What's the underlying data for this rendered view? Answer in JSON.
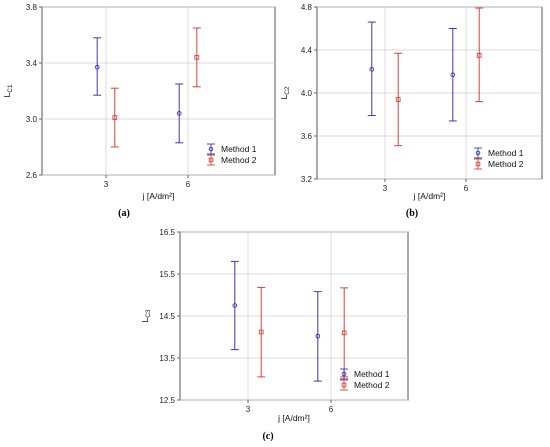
{
  "chart_data": [
    {
      "type": "scatter",
      "subtype": "error-bar",
      "panel_label": "(a)",
      "categories": [
        "3",
        "6"
      ],
      "xlabel": "j [A/dm²]",
      "ylabel": "L",
      "ylabel_sub": "C1",
      "ylim": [
        2.6,
        3.8
      ],
      "yticks": [
        "2.6",
        "3.0",
        "3.4",
        "3.8"
      ],
      "grid": true,
      "legend_position": "bottom-right",
      "series": [
        {
          "name": "Method 1",
          "color": "#3a3ab0",
          "marker": "circle",
          "mean": [
            3.37,
            3.04
          ],
          "lower": [
            3.17,
            2.83
          ],
          "upper": [
            3.58,
            3.25
          ]
        },
        {
          "name": "Method 2",
          "color": "#d9443a",
          "marker": "square",
          "mean": [
            3.01,
            3.44
          ],
          "lower": [
            2.8,
            3.23
          ],
          "upper": [
            3.22,
            3.65
          ]
        }
      ]
    },
    {
      "type": "scatter",
      "subtype": "error-bar",
      "panel_label": "(b)",
      "categories": [
        "3",
        "6"
      ],
      "xlabel": "j [A/dm²]",
      "ylabel": "L",
      "ylabel_sub": "C2",
      "ylim": [
        3.2,
        4.8
      ],
      "yticks": [
        "3.2",
        "3.6",
        "4.0",
        "4.4",
        "4.8"
      ],
      "grid": true,
      "legend_position": "bottom-right",
      "series": [
        {
          "name": "Method 1",
          "color": "#3a3ab0",
          "marker": "circle",
          "mean": [
            4.22,
            4.17
          ],
          "lower": [
            3.79,
            3.74
          ],
          "upper": [
            4.66,
            4.6
          ]
        },
        {
          "name": "Method 2",
          "color": "#d9443a",
          "marker": "square",
          "mean": [
            3.94,
            4.35
          ],
          "lower": [
            3.51,
            3.92
          ],
          "upper": [
            4.37,
            4.79
          ]
        }
      ]
    },
    {
      "type": "scatter",
      "subtype": "error-bar",
      "panel_label": "(c)",
      "categories": [
        "3",
        "6"
      ],
      "xlabel": "j [A/dm²]",
      "ylabel": "L",
      "ylabel_sub": "C3",
      "ylim": [
        12.5,
        16.5
      ],
      "yticks": [
        "12.5",
        "13.5",
        "14.5",
        "15.5",
        "16.5"
      ],
      "grid": true,
      "legend_position": "bottom-right",
      "series": [
        {
          "name": "Method 1",
          "color": "#3a3ab0",
          "marker": "circle",
          "mean": [
            14.75,
            14.02
          ],
          "lower": [
            13.7,
            12.95
          ],
          "upper": [
            15.8,
            15.08
          ]
        },
        {
          "name": "Method 2",
          "color": "#d9443a",
          "marker": "square",
          "mean": [
            14.12,
            14.1
          ],
          "lower": [
            13.05,
            13.05
          ],
          "upper": [
            15.18,
            15.17
          ]
        }
      ]
    }
  ]
}
